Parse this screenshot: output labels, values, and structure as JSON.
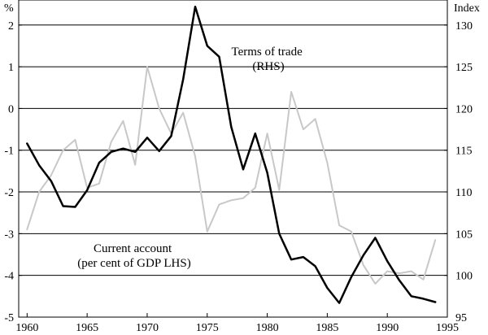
{
  "chart_data": {
    "type": "line",
    "x_axis": {
      "min": 1959.3,
      "max": 1995,
      "ticks": [
        1960,
        1965,
        1970,
        1975,
        1980,
        1985,
        1990,
        1995
      ],
      "tick_labels": [
        "1960",
        "1965",
        "1970",
        "1975",
        "1980",
        "1985",
        "1990",
        "1995"
      ]
    },
    "y_left": {
      "unit": "%",
      "min": -5,
      "max": 2.6,
      "ticks": [
        -5,
        -4,
        -3,
        -2,
        -1,
        0,
        1,
        2
      ],
      "tick_labels": [
        "-5",
        "-4",
        "-3",
        "-2",
        "-1",
        "0",
        "1",
        "2"
      ],
      "gridlines": [
        -4,
        -3,
        -2,
        -1,
        0,
        1,
        2
      ]
    },
    "y_right": {
      "unit": "Index",
      "min": 95,
      "max": 133,
      "ticks": [
        95,
        100,
        105,
        110,
        115,
        120,
        125,
        130
      ],
      "tick_labels": [
        "95",
        "100",
        "105",
        "110",
        "115",
        "120",
        "125",
        "130"
      ]
    },
    "series": [
      {
        "name": "Current account (per cent of GDP LHS)",
        "axis": "left",
        "color": "#c8c8c8",
        "label_lines": [
          "Current account",
          "(per cent of GDP LHS)"
        ],
        "x": [
          1960,
          1961,
          1962,
          1963,
          1964,
          1965,
          1966,
          1967,
          1968,
          1969,
          1970,
          1971,
          1972,
          1973,
          1974,
          1975,
          1976,
          1977,
          1978,
          1979,
          1980,
          1981,
          1982,
          1983,
          1984,
          1985,
          1986,
          1987,
          1988,
          1989,
          1990,
          1991,
          1992,
          1993,
          1994
        ],
        "values": [
          -2.9,
          -2.0,
          -1.6,
          -1.0,
          -0.75,
          -1.9,
          -1.8,
          -0.8,
          -0.3,
          -1.35,
          1.0,
          0.0,
          -0.6,
          -0.1,
          -1.15,
          -2.95,
          -2.3,
          -2.2,
          -2.15,
          -1.9,
          -0.6,
          -1.95,
          0.4,
          -0.5,
          -0.25,
          -1.3,
          -2.8,
          -2.95,
          -3.75,
          -4.2,
          -3.9,
          -3.95,
          -3.9,
          -4.1,
          -3.15
        ]
      },
      {
        "name": "Terms of trade (RHS)",
        "axis": "right",
        "color": "#000000",
        "label_lines": [
          "Terms of trade",
          "(RHS)"
        ],
        "x": [
          1960,
          1961,
          1962,
          1963,
          1964,
          1965,
          1966,
          1967,
          1968,
          1969,
          1970,
          1971,
          1972,
          1973,
          1974,
          1975,
          1976,
          1977,
          1978,
          1979,
          1980,
          1981,
          1982,
          1983,
          1984,
          1985,
          1986,
          1987,
          1988,
          1989,
          1990,
          1991,
          1992,
          1993,
          1994
        ],
        "values": [
          115.8,
          113.2,
          111.3,
          108.3,
          108.2,
          110.2,
          113.5,
          114.8,
          115.2,
          114.8,
          116.5,
          114.9,
          116.7,
          123.5,
          132.2,
          127.5,
          126.2,
          117.8,
          112.7,
          117.0,
          112.3,
          105.0,
          101.9,
          102.2,
          101.1,
          98.5,
          96.7,
          99.8,
          102.4,
          104.5,
          101.7,
          99.4,
          97.5,
          97.2,
          96.8
        ]
      }
    ]
  }
}
